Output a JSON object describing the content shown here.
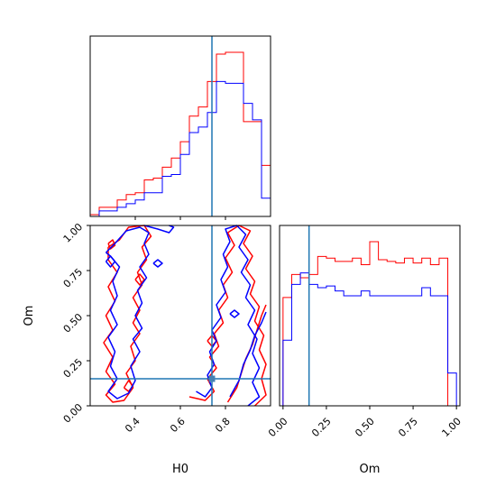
{
  "chart_data": [
    {
      "type": "histogram",
      "panel": "H0 marginal",
      "x_range": [
        0.2,
        1.0
      ],
      "truth": 0.74,
      "bin_edges": [
        0.2,
        0.24,
        0.28,
        0.32,
        0.36,
        0.4,
        0.44,
        0.48,
        0.52,
        0.56,
        0.6,
        0.64,
        0.68,
        0.72,
        0.76,
        0.8,
        0.84,
        0.88,
        0.92,
        0.96,
        1.0
      ],
      "series": [
        {
          "color": "#ff0000",
          "values": [
            1,
            5,
            5,
            9,
            12,
            13,
            20,
            21,
            27,
            32,
            41,
            55,
            60,
            74,
            89,
            90,
            90,
            52,
            52,
            28
          ]
        },
        {
          "color": "#0000ff",
          "values": [
            0,
            3,
            3,
            5,
            7,
            9,
            13,
            13,
            22,
            23,
            34,
            46,
            49,
            57,
            74,
            73,
            73,
            62,
            53,
            10
          ]
        }
      ]
    },
    {
      "type": "contour",
      "panel": "H0 vs Om",
      "xlabel": "H0",
      "ylabel": "Om",
      "xlim": [
        0.2,
        1.0
      ],
      "ylim": [
        0.0,
        1.0
      ],
      "xticks": [
        "0.4",
        "0.6",
        "0.8"
      ],
      "yticks": [
        "0.00",
        "0.25",
        "0.50",
        "0.75",
        "1.00"
      ],
      "truth": {
        "H0": 0.74,
        "Om": 0.15
      },
      "series": [
        {
          "color": "#ff0000",
          "contours": [
            [
              [
                0.28,
                0.88
              ],
              [
                0.33,
                0.92
              ],
              [
                0.37,
                0.99
              ],
              [
                0.44,
                1.0
              ],
              [
                0.47,
                0.94
              ],
              [
                0.43,
                0.88
              ],
              [
                0.45,
                0.81
              ],
              [
                0.41,
                0.74
              ],
              [
                0.43,
                0.67
              ],
              [
                0.39,
                0.6
              ],
              [
                0.42,
                0.53
              ],
              [
                0.39,
                0.46
              ],
              [
                0.42,
                0.4
              ],
              [
                0.38,
                0.33
              ],
              [
                0.4,
                0.25
              ],
              [
                0.36,
                0.18
              ],
              [
                0.39,
                0.1
              ],
              [
                0.35,
                0.03
              ],
              [
                0.3,
                0.02
              ],
              [
                0.27,
                0.06
              ],
              [
                0.31,
                0.12
              ],
              [
                0.27,
                0.19
              ],
              [
                0.3,
                0.27
              ],
              [
                0.26,
                0.35
              ],
              [
                0.3,
                0.42
              ],
              [
                0.27,
                0.5
              ],
              [
                0.31,
                0.58
              ],
              [
                0.28,
                0.66
              ],
              [
                0.32,
                0.74
              ],
              [
                0.28,
                0.81
              ],
              [
                0.28,
                0.88
              ]
            ],
            [
              [
                0.64,
                0.05
              ],
              [
                0.71,
                0.03
              ],
              [
                0.75,
                0.08
              ],
              [
                0.72,
                0.15
              ],
              [
                0.76,
                0.21
              ],
              [
                0.73,
                0.27
              ],
              [
                0.77,
                0.33
              ],
              [
                0.75,
                0.4
              ],
              [
                0.79,
                0.46
              ],
              [
                0.77,
                0.53
              ],
              [
                0.81,
                0.6
              ],
              [
                0.79,
                0.67
              ],
              [
                0.83,
                0.74
              ],
              [
                0.8,
                0.82
              ],
              [
                0.84,
                0.89
              ],
              [
                0.81,
                0.96
              ],
              [
                0.86,
                1.0
              ],
              [
                0.91,
                0.97
              ],
              [
                0.88,
                0.9
              ],
              [
                0.92,
                0.83
              ],
              [
                0.89,
                0.76
              ],
              [
                0.93,
                0.69
              ],
              [
                0.91,
                0.62
              ],
              [
                0.95,
                0.55
              ],
              [
                0.93,
                0.47
              ],
              [
                0.97,
                0.39
              ],
              [
                0.95,
                0.31
              ],
              [
                0.98,
                0.23
              ],
              [
                0.96,
                0.15
              ],
              [
                0.98,
                0.06
              ],
              [
                0.93,
                0.0
              ]
            ],
            [
              [
                0.81,
                0.02
              ],
              [
                0.85,
                0.1
              ],
              [
                0.87,
                0.18
              ],
              [
                0.89,
                0.26
              ],
              [
                0.92,
                0.34
              ],
              [
                0.94,
                0.42
              ],
              [
                0.96,
                0.5
              ],
              [
                0.98,
                0.56
              ]
            ],
            [
              [
                0.35,
                0.1
              ],
              [
                0.37,
                0.14
              ],
              [
                0.39,
                0.11
              ],
              [
                0.37,
                0.08
              ],
              [
                0.35,
                0.1
              ]
            ],
            [
              [
                0.28,
                0.9
              ],
              [
                0.3,
                0.92
              ],
              [
                0.31,
                0.89
              ],
              [
                0.29,
                0.87
              ],
              [
                0.28,
                0.9
              ]
            ],
            [
              [
                0.4,
                0.7
              ],
              [
                0.42,
                0.73
              ],
              [
                0.44,
                0.7
              ],
              [
                0.42,
                0.67
              ],
              [
                0.4,
                0.7
              ]
            ],
            [
              [
                0.72,
                0.36
              ],
              [
                0.74,
                0.39
              ],
              [
                0.76,
                0.36
              ],
              [
                0.74,
                0.33
              ],
              [
                0.72,
                0.36
              ]
            ]
          ]
        },
        {
          "color": "#0000ff",
          "contours": [
            [
              [
                0.27,
                0.85
              ],
              [
                0.31,
                0.9
              ],
              [
                0.36,
                0.97
              ],
              [
                0.42,
                0.99
              ],
              [
                0.46,
                0.96
              ],
              [
                0.44,
                0.9
              ],
              [
                0.46,
                0.84
              ],
              [
                0.42,
                0.77
              ],
              [
                0.45,
                0.71
              ],
              [
                0.41,
                0.64
              ],
              [
                0.43,
                0.57
              ],
              [
                0.4,
                0.5
              ],
              [
                0.43,
                0.43
              ],
              [
                0.39,
                0.37
              ],
              [
                0.42,
                0.3
              ],
              [
                0.38,
                0.22
              ],
              [
                0.4,
                0.14
              ],
              [
                0.37,
                0.07
              ],
              [
                0.32,
                0.04
              ],
              [
                0.28,
                0.08
              ],
              [
                0.32,
                0.15
              ],
              [
                0.29,
                0.22
              ],
              [
                0.31,
                0.3
              ],
              [
                0.28,
                0.38
              ],
              [
                0.32,
                0.45
              ],
              [
                0.29,
                0.53
              ],
              [
                0.32,
                0.61
              ],
              [
                0.3,
                0.69
              ],
              [
                0.33,
                0.77
              ],
              [
                0.29,
                0.83
              ],
              [
                0.27,
                0.85
              ]
            ],
            [
              [
                0.44,
                1.0
              ],
              [
                0.5,
                0.98
              ],
              [
                0.55,
                0.96
              ],
              [
                0.57,
                0.99
              ],
              [
                0.55,
                1.0
              ]
            ],
            [
              [
                0.67,
                0.08
              ],
              [
                0.71,
                0.05
              ],
              [
                0.74,
                0.1
              ],
              [
                0.72,
                0.17
              ],
              [
                0.75,
                0.23
              ],
              [
                0.73,
                0.3
              ],
              [
                0.76,
                0.36
              ],
              [
                0.74,
                0.42
              ],
              [
                0.78,
                0.49
              ],
              [
                0.76,
                0.56
              ],
              [
                0.8,
                0.63
              ],
              [
                0.78,
                0.7
              ],
              [
                0.81,
                0.77
              ],
              [
                0.79,
                0.84
              ],
              [
                0.82,
                0.91
              ],
              [
                0.8,
                0.98
              ],
              [
                0.85,
                1.0
              ],
              [
                0.89,
                0.95
              ],
              [
                0.86,
                0.88
              ],
              [
                0.9,
                0.81
              ],
              [
                0.87,
                0.74
              ],
              [
                0.91,
                0.67
              ],
              [
                0.89,
                0.6
              ],
              [
                0.93,
                0.53
              ],
              [
                0.9,
                0.45
              ],
              [
                0.94,
                0.37
              ],
              [
                0.92,
                0.29
              ],
              [
                0.95,
                0.21
              ],
              [
                0.92,
                0.13
              ],
              [
                0.95,
                0.05
              ],
              [
                0.9,
                0.0
              ]
            ],
            [
              [
                0.82,
                0.05
              ],
              [
                0.86,
                0.14
              ],
              [
                0.88,
                0.23
              ],
              [
                0.91,
                0.31
              ],
              [
                0.93,
                0.39
              ],
              [
                0.96,
                0.46
              ],
              [
                0.98,
                0.52
              ]
            ],
            [
              [
                0.48,
                0.79
              ],
              [
                0.5,
                0.81
              ],
              [
                0.52,
                0.79
              ],
              [
                0.5,
                0.77
              ],
              [
                0.48,
                0.79
              ]
            ],
            [
              [
                0.27,
                0.8
              ],
              [
                0.29,
                0.83
              ],
              [
                0.31,
                0.8
              ],
              [
                0.29,
                0.77
              ],
              [
                0.27,
                0.8
              ]
            ],
            [
              [
                0.82,
                0.51
              ],
              [
                0.84,
                0.53
              ],
              [
                0.86,
                0.51
              ],
              [
                0.84,
                0.49
              ],
              [
                0.82,
                0.51
              ]
            ]
          ]
        }
      ]
    },
    {
      "type": "histogram",
      "panel": "Om marginal",
      "xlabel": "Om",
      "x_range": [
        -0.02,
        1.02
      ],
      "xticks": [
        "0.00",
        "0.25",
        "0.50",
        "0.75",
        "1.00"
      ],
      "truth": 0.15,
      "bin_edges": [
        0.0,
        0.05,
        0.1,
        0.15,
        0.2,
        0.25,
        0.3,
        0.35,
        0.4,
        0.45,
        0.5,
        0.55,
        0.6,
        0.65,
        0.7,
        0.75,
        0.8,
        0.85,
        0.9,
        0.95,
        1.0
      ],
      "series": [
        {
          "color": "#ff0000",
          "values": [
            66,
            80,
            78,
            80,
            91,
            90,
            88,
            88,
            90,
            86,
            100,
            89,
            88,
            87,
            90,
            87,
            90,
            86,
            90,
            0
          ]
        },
        {
          "color": "#0000ff",
          "values": [
            40,
            74,
            81,
            74,
            72,
            73,
            70,
            67,
            67,
            70,
            67,
            67,
            67,
            67,
            67,
            67,
            72,
            67,
            67,
            20
          ]
        }
      ]
    }
  ]
}
